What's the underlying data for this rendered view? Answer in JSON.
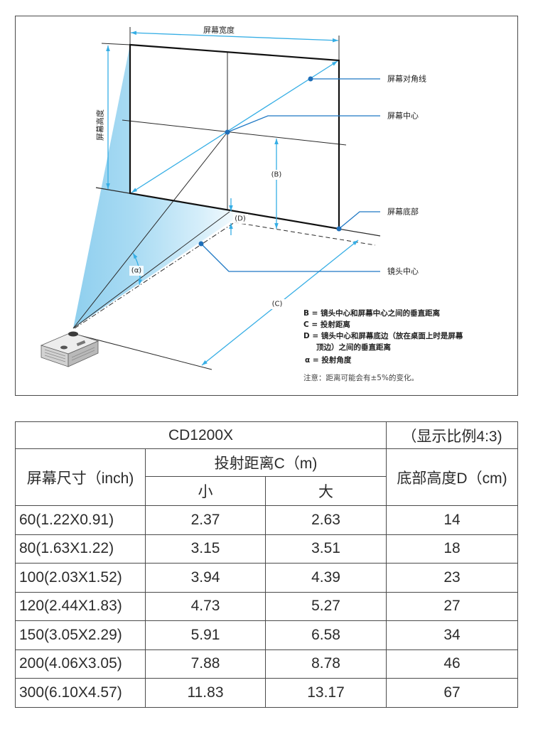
{
  "diagram": {
    "labels": {
      "screen_width": "屏幕宽度",
      "screen_height": "屏幕高度",
      "screen_diagonal": "屏幕对角线",
      "screen_center": "屏幕中心",
      "screen_bottom": "屏幕底部",
      "lens_center": "镜头中心",
      "b": "(B)",
      "c": "(C)",
      "d": "(D)",
      "alpha": "(α)"
    },
    "legend": {
      "b": "B = 镜头中心和屏幕中心之间的垂直距离",
      "c": "C = 投射距离",
      "d_line1": "D = 镜头中心和屏幕底边（放在桌面上时是屏幕",
      "d_line2": "顶边）之间的垂直距离",
      "alpha": "α = 投射角度"
    },
    "note": "注意：距离可能会有±5%的变化。"
  },
  "table": {
    "model": "CD1200X",
    "aspect_ratio": "（显示比例4:3)",
    "headers": {
      "screen_size": "屏幕尺寸（inch)",
      "throw_distance": "投射距离C（m)",
      "min": "小",
      "max": "大",
      "bottom_height": "底部高度D（cm)"
    },
    "rows": [
      {
        "size": "60(1.22X0.91)",
        "min": "2.37",
        "max": "2.63",
        "bottom": "14"
      },
      {
        "size": "80(1.63X1.22)",
        "min": "3.15",
        "max": "3.51",
        "bottom": "18"
      },
      {
        "size": "100(2.03X1.52)",
        "min": "3.94",
        "max": "4.39",
        "bottom": "23"
      },
      {
        "size": "120(2.44X1.83)",
        "min": "4.73",
        "max": "5.27",
        "bottom": "27"
      },
      {
        "size": "150(3.05X2.29)",
        "min": "5.91",
        "max": "6.58",
        "bottom": "34"
      },
      {
        "size": "200(4.06X3.05)",
        "min": "7.88",
        "max": "8.78",
        "bottom": "46"
      },
      {
        "size": "300(6.10X4.57)",
        "min": "11.83",
        "max": "13.17",
        "bottom": "67"
      }
    ]
  },
  "colors": {
    "measurement_blue": "#36aee5",
    "callout_blue": "#1f78c4",
    "cone_blue": "#a9dbf3"
  }
}
